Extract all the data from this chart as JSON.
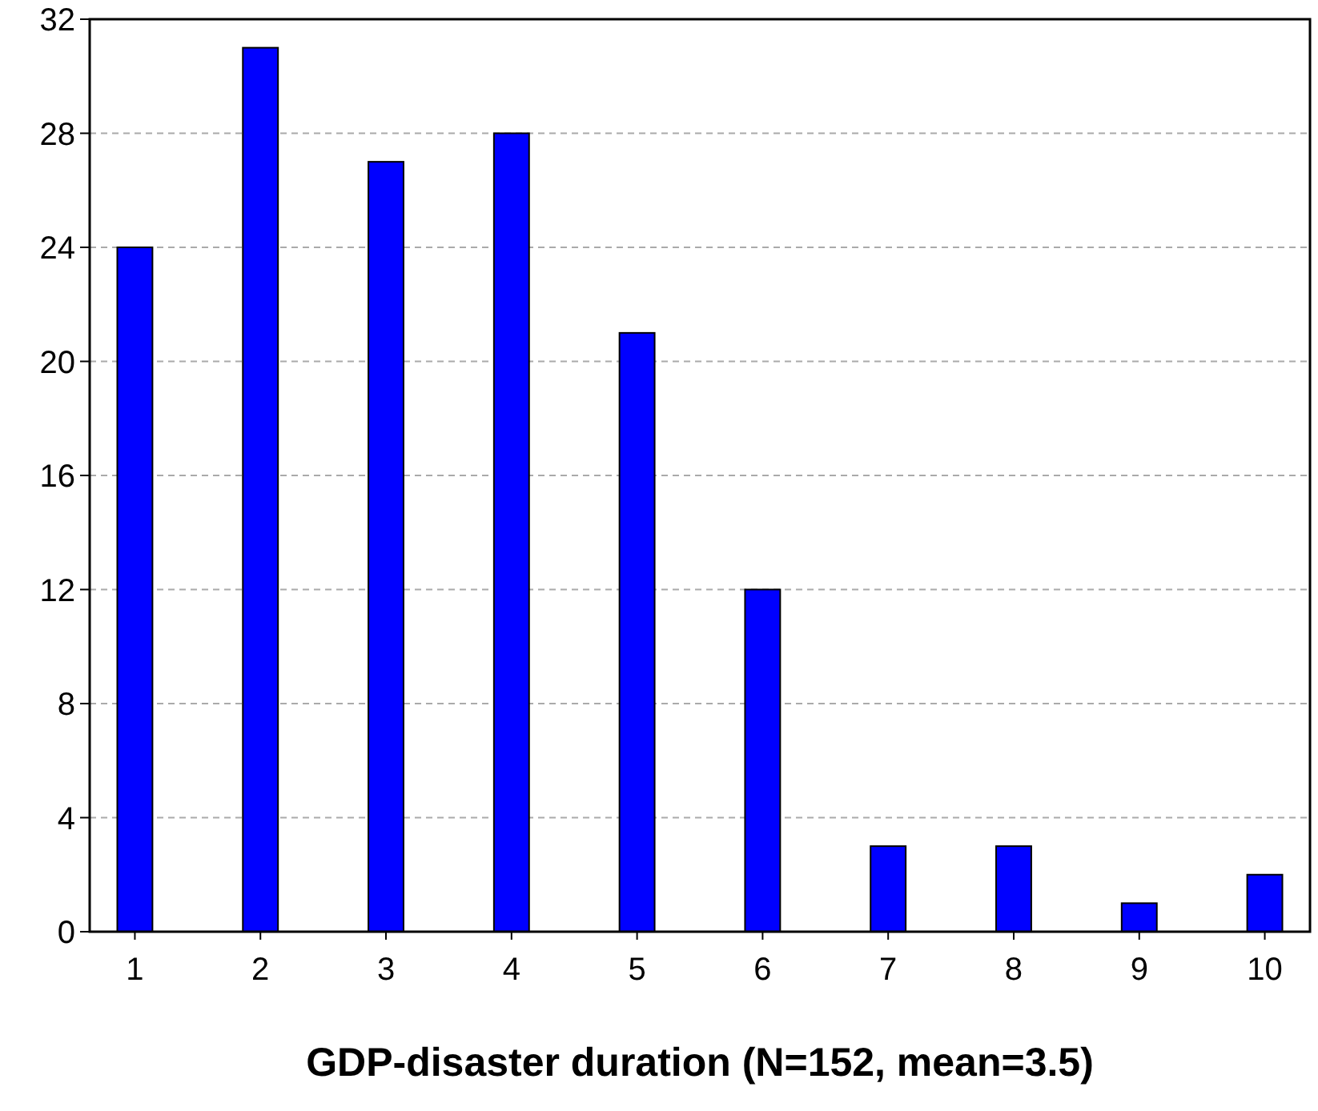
{
  "chart_data": {
    "type": "bar",
    "xlabel": "GDP-disaster duration (N=152, mean=3.5)",
    "categories": [
      "1",
      "2",
      "3",
      "4",
      "5",
      "6",
      "7",
      "8",
      "9",
      "10"
    ],
    "values": [
      24,
      31,
      27,
      28,
      21,
      12,
      3,
      3,
      1,
      2
    ],
    "color": "#0000ff",
    "ylim": [
      0,
      32
    ],
    "yticks": [
      0,
      4,
      8,
      12,
      16,
      20,
      24,
      28,
      32
    ],
    "grid": "y"
  }
}
